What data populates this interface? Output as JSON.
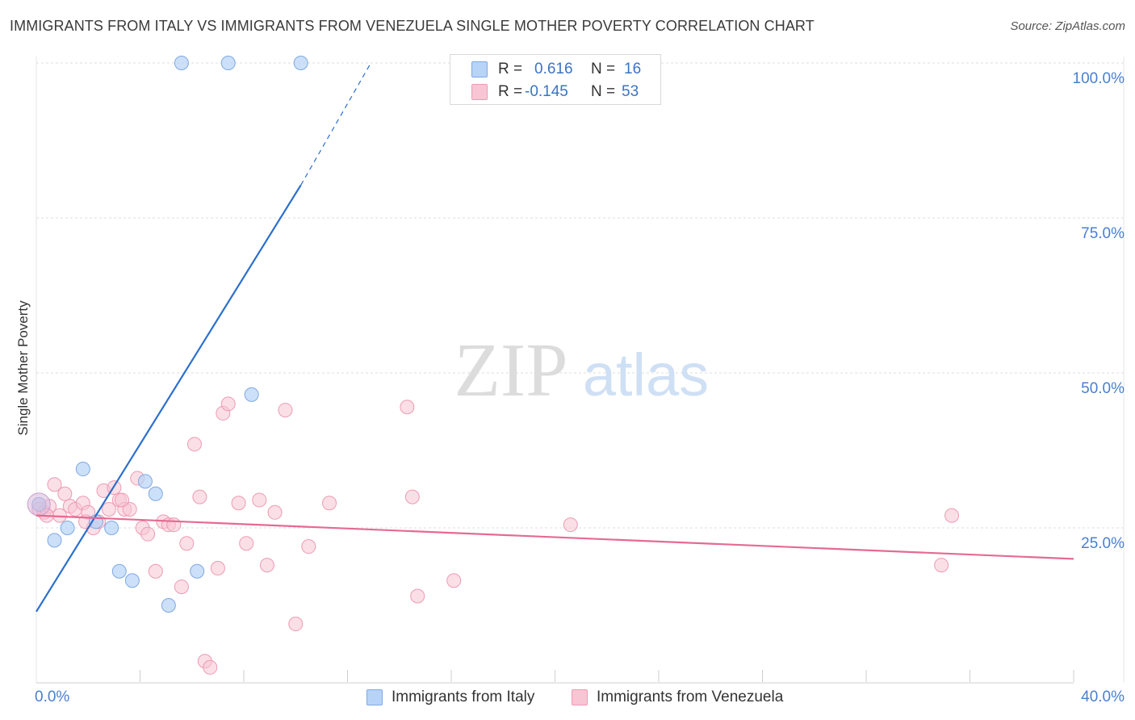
{
  "title": "IMMIGRANTS FROM ITALY VS IMMIGRANTS FROM VENEZUELA SINGLE MOTHER POVERTY CORRELATION CHART",
  "source": "Source: ZipAtlas.com",
  "watermark": {
    "zip": "ZIP",
    "atlas": "atlas"
  },
  "colors": {
    "italy_fill": "#b7d3f7",
    "italy_stroke": "#7fa9e3",
    "italy_line": "#2c6fcc",
    "venezuela_fill": "#f8c5d4",
    "venezuela_stroke": "#ee9ab3",
    "venezuela_line": "#e56a92",
    "axis_text": "#4a7fd0",
    "grid": "#dddddd"
  },
  "stats_legend": {
    "rows": [
      {
        "r_label": "R =",
        "r_value": "0.616",
        "n_label": "N =",
        "n_value": "16"
      },
      {
        "r_label": "R =",
        "r_value": "-0.145",
        "n_label": "N =",
        "n_value": "53"
      }
    ]
  },
  "bottom_legend": {
    "italy": "Immigrants from Italy",
    "venezuela": "Immigrants from Venezuela"
  },
  "chart_data": {
    "type": "scatter",
    "title": "IMMIGRANTS FROM ITALY VS IMMIGRANTS FROM VENEZUELA SINGLE MOTHER POVERTY CORRELATION CHART",
    "xlabel": "",
    "ylabel": "Single Mother Poverty",
    "xlim": [
      0,
      40
    ],
    "ylim": [
      0,
      100
    ],
    "x_tick_labels": [
      "0.0%",
      "40.0%"
    ],
    "y_ticks": [
      25,
      50,
      75,
      100
    ],
    "y_tick_labels": [
      "25.0%",
      "50.0%",
      "75.0%",
      "100.0%"
    ],
    "grid": true,
    "series": [
      {
        "name": "Immigrants from Italy",
        "r": 0.616,
        "n": 16,
        "x": [
          0.1,
          0.7,
          1.2,
          1.8,
          2.3,
          2.9,
          3.2,
          3.7,
          4.2,
          4.6,
          5.1,
          5.6,
          6.2,
          7.4,
          8.3,
          10.2
        ],
        "y": [
          28.8,
          23.0,
          25.0,
          34.5,
          26.0,
          25.0,
          18.0,
          16.5,
          32.5,
          30.5,
          12.5,
          100.0,
          18.0,
          100.0,
          46.5,
          100.0
        ],
        "trend": {
          "x0": 0,
          "y0": 11.5,
          "x1": 10.2,
          "y1": 80.3,
          "dash_to_x": 12.9,
          "dash_to_y": 100
        }
      },
      {
        "name": "Immigrants from Venezuela",
        "r": -0.145,
        "n": 53,
        "x": [
          0.1,
          0.3,
          0.5,
          0.7,
          0.9,
          1.1,
          1.3,
          1.5,
          1.8,
          2.0,
          2.2,
          2.4,
          2.6,
          2.8,
          3.0,
          3.2,
          3.4,
          3.6,
          3.9,
          4.1,
          4.3,
          4.6,
          4.9,
          5.1,
          5.3,
          5.6,
          5.8,
          6.1,
          6.3,
          6.5,
          7.0,
          7.2,
          7.4,
          7.8,
          8.1,
          8.6,
          8.9,
          9.2,
          9.6,
          10.0,
          10.5,
          11.3,
          14.3,
          14.5,
          14.7,
          16.1,
          20.6,
          34.9,
          35.3,
          3.3,
          1.9,
          0.4,
          6.7
        ],
        "y": [
          28.0,
          27.5,
          28.5,
          32.0,
          27.0,
          30.5,
          28.5,
          28.0,
          29.0,
          27.5,
          25.0,
          26.0,
          31.0,
          28.0,
          31.5,
          29.5,
          28.0,
          28.0,
          33.0,
          25.0,
          24.0,
          18.0,
          26.0,
          25.5,
          25.5,
          15.5,
          22.5,
          38.5,
          30.0,
          3.5,
          18.5,
          43.5,
          45.0,
          29.0,
          22.5,
          29.5,
          19.0,
          27.5,
          44.0,
          9.5,
          22.0,
          29.0,
          44.5,
          30.0,
          14.0,
          16.5,
          25.5,
          19.0,
          27.0,
          29.5,
          26.0,
          27.0,
          2.5
        ],
        "trend": {
          "x0": 0,
          "y0": 27.0,
          "x1": 40,
          "y1": 20.0
        }
      }
    ]
  }
}
